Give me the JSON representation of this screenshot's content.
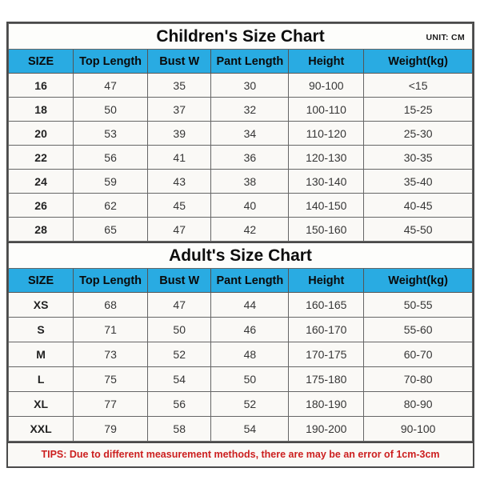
{
  "page": {
    "unit_label": "UNIT: CM",
    "tips": "TIPS: Due to different measurement methods, there are may be an error of 1cm-3cm"
  },
  "children_chart": {
    "title": "Children's Size Chart",
    "headers": [
      "SIZE",
      "Top Length",
      "Bust W",
      "Pant Length",
      "Height",
      "Weight(kg)"
    ],
    "rows": [
      [
        "16",
        "47",
        "35",
        "30",
        "90-100",
        "<15"
      ],
      [
        "18",
        "50",
        "37",
        "32",
        "100-110",
        "15-25"
      ],
      [
        "20",
        "53",
        "39",
        "34",
        "110-120",
        "25-30"
      ],
      [
        "22",
        "56",
        "41",
        "36",
        "120-130",
        "30-35"
      ],
      [
        "24",
        "59",
        "43",
        "38",
        "130-140",
        "35-40"
      ],
      [
        "26",
        "62",
        "45",
        "40",
        "140-150",
        "40-45"
      ],
      [
        "28",
        "65",
        "47",
        "42",
        "150-160",
        "45-50"
      ]
    ]
  },
  "adult_chart": {
    "title": "Adult's Size Chart",
    "headers": [
      "SIZE",
      "Top Length",
      "Bust W",
      "Pant Length",
      "Height",
      "Weight(kg)"
    ],
    "rows": [
      [
        "XS",
        "68",
        "47",
        "44",
        "160-165",
        "50-55"
      ],
      [
        "S",
        "71",
        "50",
        "46",
        "160-170",
        "55-60"
      ],
      [
        "M",
        "73",
        "52",
        "48",
        "170-175",
        "60-70"
      ],
      [
        "L",
        "75",
        "54",
        "50",
        "175-180",
        "70-80"
      ],
      [
        "XL",
        "77",
        "56",
        "52",
        "180-190",
        "80-90"
      ],
      [
        "XXL",
        "79",
        "58",
        "54",
        "190-200",
        "90-100"
      ]
    ]
  },
  "colors": {
    "header_bg": "#29abe2",
    "tips_text": "#cc1f1f",
    "outer_border": "#4a4a4a",
    "inner_border": "#666666",
    "cell_bg": "#faf9f6"
  }
}
